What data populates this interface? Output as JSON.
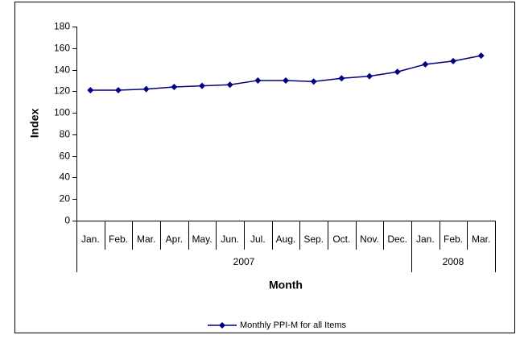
{
  "chart_data": {
    "type": "line",
    "xlabel": "Month",
    "ylabel": "Index",
    "categories": [
      "Jan.",
      "Feb.",
      "Mar.",
      "Apr.",
      "May.",
      "Jun.",
      "Jul.",
      "Aug.",
      "Sep.",
      "Oct.",
      "Nov.",
      "Dec.",
      "Jan.",
      "Feb.",
      "Mar."
    ],
    "year_groups": [
      {
        "label": "2007",
        "span": 12
      },
      {
        "label": "2008",
        "span": 3
      }
    ],
    "series": [
      {
        "name": "Monthly PPI-M for all Items",
        "color": "#000080",
        "values": [
          121,
          121,
          122,
          124,
          125,
          126,
          130,
          130,
          129,
          132,
          134,
          138,
          145,
          148,
          153
        ]
      }
    ],
    "ylim": [
      0,
      180
    ],
    "yticks": [
      0,
      20,
      40,
      60,
      80,
      100,
      120,
      140,
      160,
      180
    ],
    "grid": false,
    "legend": "bottom"
  }
}
